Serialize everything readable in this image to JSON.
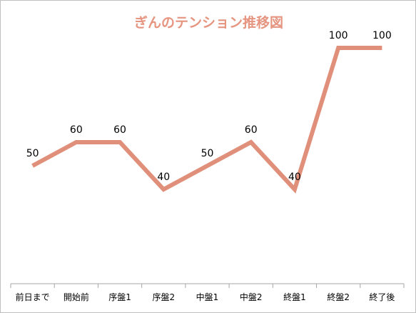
{
  "chart_data": {
    "type": "line",
    "title": "ぎんのテンション推移図",
    "categories": [
      "前日まで",
      "開始前",
      "序盤1",
      "序盤2",
      "中盤1",
      "中盤2",
      "終盤1",
      "終盤2",
      "終了後"
    ],
    "series": [
      {
        "values": [
          50,
          60,
          60,
          40,
          50,
          60,
          40,
          100,
          100
        ]
      }
    ],
    "ylim": [
      0,
      120
    ],
    "data_labels": true,
    "y_axis_visible": false,
    "grid": false,
    "legend": "none",
    "colors": {
      "line": "#e0907a",
      "title": "#e59580",
      "axis": "#a6a6a6"
    }
  }
}
